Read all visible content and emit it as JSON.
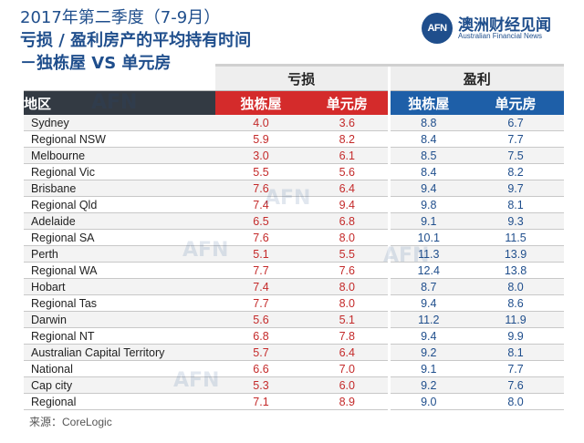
{
  "title": {
    "line1": "2017年第二季度（7-9月）",
    "line2": "亏损 / 盈利房产的平均持有时间",
    "line3": "－独栋屋 VS 单元房"
  },
  "logo": {
    "mark": "AFN",
    "name_cn": "澳洲财经见闻",
    "name_en": "Australian Financial News",
    "colors": {
      "brand": "#1f4e8c"
    }
  },
  "chart_data": {
    "type": "table",
    "groups": [
      "亏损",
      "盈利"
    ],
    "columns": [
      "地区",
      "独栋屋",
      "单元房",
      "独栋屋",
      "单元房"
    ],
    "rows": [
      {
        "region": "Sydney",
        "loss_house": "4.0",
        "loss_unit": "3.6",
        "gain_house": "8.8",
        "gain_unit": "6.7"
      },
      {
        "region": "Regional NSW",
        "loss_house": "5.9",
        "loss_unit": "8.2",
        "gain_house": "8.4",
        "gain_unit": "7.7"
      },
      {
        "region": "Melbourne",
        "loss_house": "3.0",
        "loss_unit": "6.1",
        "gain_house": "8.5",
        "gain_unit": "7.5"
      },
      {
        "region": "Regional Vic",
        "loss_house": "5.5",
        "loss_unit": "5.6",
        "gain_house": "8.4",
        "gain_unit": "8.2"
      },
      {
        "region": "Brisbane",
        "loss_house": "7.6",
        "loss_unit": "6.4",
        "gain_house": "9.4",
        "gain_unit": "9.7"
      },
      {
        "region": "Regional Qld",
        "loss_house": "7.4",
        "loss_unit": "9.4",
        "gain_house": "9.8",
        "gain_unit": "8.1"
      },
      {
        "region": "Adelaide",
        "loss_house": "6.5",
        "loss_unit": "6.8",
        "gain_house": "9.1",
        "gain_unit": "9.3"
      },
      {
        "region": "Regional SA",
        "loss_house": "7.6",
        "loss_unit": "8.0",
        "gain_house": "10.1",
        "gain_unit": "11.5"
      },
      {
        "region": "Perth",
        "loss_house": "5.1",
        "loss_unit": "5.5",
        "gain_house": "11.3",
        "gain_unit": "13.9"
      },
      {
        "region": "Regional WA",
        "loss_house": "7.7",
        "loss_unit": "7.6",
        "gain_house": "12.4",
        "gain_unit": "13.8"
      },
      {
        "region": "Hobart",
        "loss_house": "7.4",
        "loss_unit": "8.0",
        "gain_house": "8.7",
        "gain_unit": "8.0"
      },
      {
        "region": "Regional Tas",
        "loss_house": "7.7",
        "loss_unit": "8.0",
        "gain_house": "9.4",
        "gain_unit": "8.6"
      },
      {
        "region": "Darwin",
        "loss_house": "5.6",
        "loss_unit": "5.1",
        "gain_house": "11.2",
        "gain_unit": "11.9"
      },
      {
        "region": "Regional NT",
        "loss_house": "6.8",
        "loss_unit": "7.8",
        "gain_house": "9.4",
        "gain_unit": "9.9"
      },
      {
        "region": "Australian Capital Territory",
        "loss_house": "5.7",
        "loss_unit": "6.4",
        "gain_house": "9.2",
        "gain_unit": "8.1"
      },
      {
        "region": "National",
        "loss_house": "6.6",
        "loss_unit": "7.0",
        "gain_house": "9.1",
        "gain_unit": "7.7"
      },
      {
        "region": "Cap city",
        "loss_house": "5.3",
        "loss_unit": "6.0",
        "gain_house": "9.2",
        "gain_unit": "7.6"
      },
      {
        "region": "Regional",
        "loss_house": "7.1",
        "loss_unit": "8.9",
        "gain_house": "9.0",
        "gain_unit": "8.0"
      }
    ],
    "colors": {
      "loss_header": "#d42b2b",
      "gain_header": "#1e5fa8",
      "region_header": "#333a43",
      "loss_text": "#c42a2a",
      "gain_text": "#1f4e8c"
    }
  },
  "source": "来源：CoreLogic"
}
